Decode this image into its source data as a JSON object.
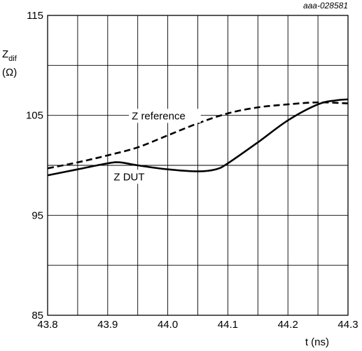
{
  "chart_data": {
    "type": "line",
    "reference_id": "aaa-028581",
    "xlabel": "t (ns)",
    "ylabel_main": "Z",
    "ylabel_sub": "dif",
    "ylabel_unit": "(Ω)",
    "xlim": [
      43.8,
      44.3
    ],
    "ylim": [
      85,
      115
    ],
    "x_ticks": [
      43.8,
      43.85,
      43.9,
      43.95,
      44.0,
      44.05,
      44.1,
      44.15,
      44.2,
      44.25,
      44.3
    ],
    "x_tick_labels": [
      "43.8",
      "",
      "43.9",
      "",
      "44.0",
      "",
      "44.1",
      "",
      "44.2",
      "",
      "44.3"
    ],
    "y_ticks": [
      85,
      90,
      95,
      100,
      105,
      110,
      115
    ],
    "y_tick_labels": [
      "85",
      "",
      "95",
      "",
      "105",
      "",
      "115"
    ],
    "grid": true,
    "series": [
      {
        "name": "Z reference",
        "style": "dashed",
        "x": [
          43.8,
          43.85,
          43.9,
          43.95,
          44.0,
          44.05,
          44.1,
          44.15,
          44.2,
          44.25,
          44.3
        ],
        "y": [
          99.7,
          100.3,
          101.0,
          101.8,
          103.0,
          104.2,
          105.2,
          105.8,
          106.1,
          106.3,
          106.2
        ]
      },
      {
        "name": "Z DUT",
        "style": "solid",
        "x": [
          43.8,
          43.85,
          43.9,
          43.92,
          43.95,
          44.0,
          44.05,
          44.08,
          44.1,
          44.15,
          44.2,
          44.25,
          44.28,
          44.3
        ],
        "y": [
          99.0,
          99.6,
          100.2,
          100.3,
          100.0,
          99.6,
          99.4,
          99.6,
          100.2,
          102.3,
          104.5,
          106.1,
          106.5,
          106.6
        ]
      }
    ],
    "annotations": [
      {
        "text": "Z reference",
        "x": 43.94,
        "y": 104.6
      },
      {
        "text": "Z DUT",
        "x": 43.91,
        "y": 98.5
      }
    ]
  }
}
